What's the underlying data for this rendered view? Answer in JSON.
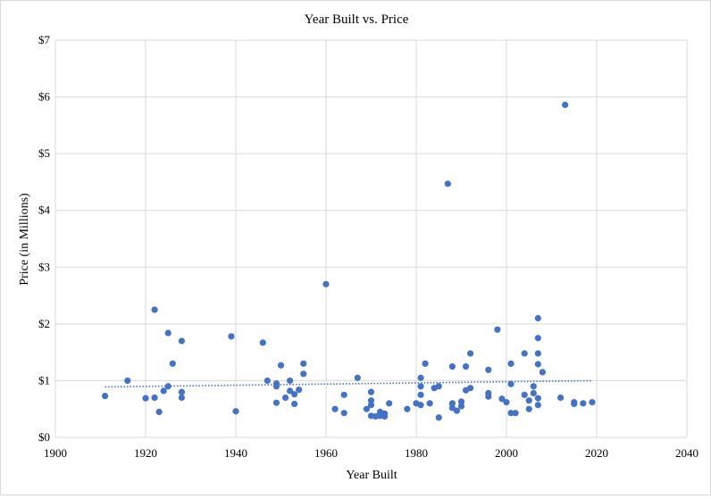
{
  "chart_data": {
    "type": "scatter",
    "title": "Year Built  vs. Price",
    "xlabel": "Year Built",
    "ylabel": "Price (in Millions)",
    "xlim": [
      1900,
      2040
    ],
    "ylim": [
      0,
      7
    ],
    "x_ticks": [
      1900,
      1920,
      1940,
      1960,
      1980,
      2000,
      2020,
      2040
    ],
    "y_ticks": [
      0,
      1,
      2,
      3,
      4,
      5,
      6,
      7
    ],
    "y_tick_labels": [
      "$0",
      "$1",
      "$2",
      "$3",
      "$4",
      "$5",
      "$6",
      "$7"
    ],
    "grid": true,
    "legend": "none",
    "colors": {
      "points": "#4472c4",
      "trendline": "#4472c4",
      "grid": "#d9d9d9"
    },
    "series": [
      {
        "points": [
          [
            1911,
            0.73
          ],
          [
            1916,
            1.0
          ],
          [
            1920,
            0.69
          ],
          [
            1922,
            2.25
          ],
          [
            1922,
            0.7
          ],
          [
            1923,
            0.45
          ],
          [
            1924,
            0.82
          ],
          [
            1925,
            1.84
          ],
          [
            1925,
            0.9
          ],
          [
            1926,
            1.3
          ],
          [
            1928,
            1.7
          ],
          [
            1928,
            0.8
          ],
          [
            1928,
            0.7
          ],
          [
            1939,
            1.78
          ],
          [
            1940,
            0.46
          ],
          [
            1946,
            1.67
          ],
          [
            1947,
            1.0
          ],
          [
            1949,
            0.95
          ],
          [
            1949,
            0.9
          ],
          [
            1949,
            0.61
          ],
          [
            1950,
            1.27
          ],
          [
            1951,
            0.7
          ],
          [
            1952,
            1.0
          ],
          [
            1952,
            0.82
          ],
          [
            1953,
            0.76
          ],
          [
            1953,
            0.59
          ],
          [
            1954,
            0.84
          ],
          [
            1955,
            1.3
          ],
          [
            1955,
            1.12
          ],
          [
            1960,
            2.7
          ],
          [
            1962,
            0.5
          ],
          [
            1964,
            0.75
          ],
          [
            1964,
            0.43
          ],
          [
            1967,
            1.05
          ],
          [
            1969,
            0.5
          ],
          [
            1970,
            0.8
          ],
          [
            1970,
            0.65
          ],
          [
            1970,
            0.57
          ],
          [
            1970,
            0.38
          ],
          [
            1971,
            0.37
          ],
          [
            1972,
            0.45
          ],
          [
            1972,
            0.38
          ],
          [
            1973,
            0.42
          ],
          [
            1973,
            0.37
          ],
          [
            1974,
            0.6
          ],
          [
            1978,
            0.5
          ],
          [
            1980,
            0.6
          ],
          [
            1981,
            1.05
          ],
          [
            1981,
            0.9
          ],
          [
            1981,
            0.75
          ],
          [
            1981,
            0.57
          ],
          [
            1982,
            1.3
          ],
          [
            1983,
            0.6
          ],
          [
            1984,
            0.87
          ],
          [
            1985,
            0.9
          ],
          [
            1985,
            0.35
          ],
          [
            1987,
            4.47
          ],
          [
            1988,
            1.25
          ],
          [
            1988,
            0.6
          ],
          [
            1988,
            0.52
          ],
          [
            1989,
            0.47
          ],
          [
            1990,
            0.55
          ],
          [
            1990,
            0.63
          ],
          [
            1991,
            1.25
          ],
          [
            1991,
            0.83
          ],
          [
            1992,
            1.48
          ],
          [
            1992,
            0.87
          ],
          [
            1996,
            1.19
          ],
          [
            1996,
            0.78
          ],
          [
            1996,
            0.72
          ],
          [
            1998,
            1.9
          ],
          [
            1999,
            0.68
          ],
          [
            2000,
            0.62
          ],
          [
            2001,
            1.3
          ],
          [
            2001,
            0.94
          ],
          [
            2001,
            0.43
          ],
          [
            2002,
            0.43
          ],
          [
            2004,
            1.48
          ],
          [
            2004,
            0.75
          ],
          [
            2005,
            0.65
          ],
          [
            2005,
            0.5
          ],
          [
            2006,
            0.9
          ],
          [
            2006,
            0.78
          ],
          [
            2007,
            2.1
          ],
          [
            2007,
            1.75
          ],
          [
            2007,
            1.48
          ],
          [
            2007,
            1.29
          ],
          [
            2007,
            0.69
          ],
          [
            2007,
            0.57
          ],
          [
            2008,
            1.15
          ],
          [
            2012,
            0.7
          ],
          [
            2013,
            5.86
          ],
          [
            2015,
            0.62
          ],
          [
            2015,
            0.59
          ],
          [
            2017,
            0.6
          ],
          [
            2019,
            0.62
          ]
        ]
      }
    ],
    "trendline": {
      "style": "dotted",
      "x": [
        1911,
        2019
      ],
      "y": [
        0.89,
        1.0
      ]
    }
  }
}
